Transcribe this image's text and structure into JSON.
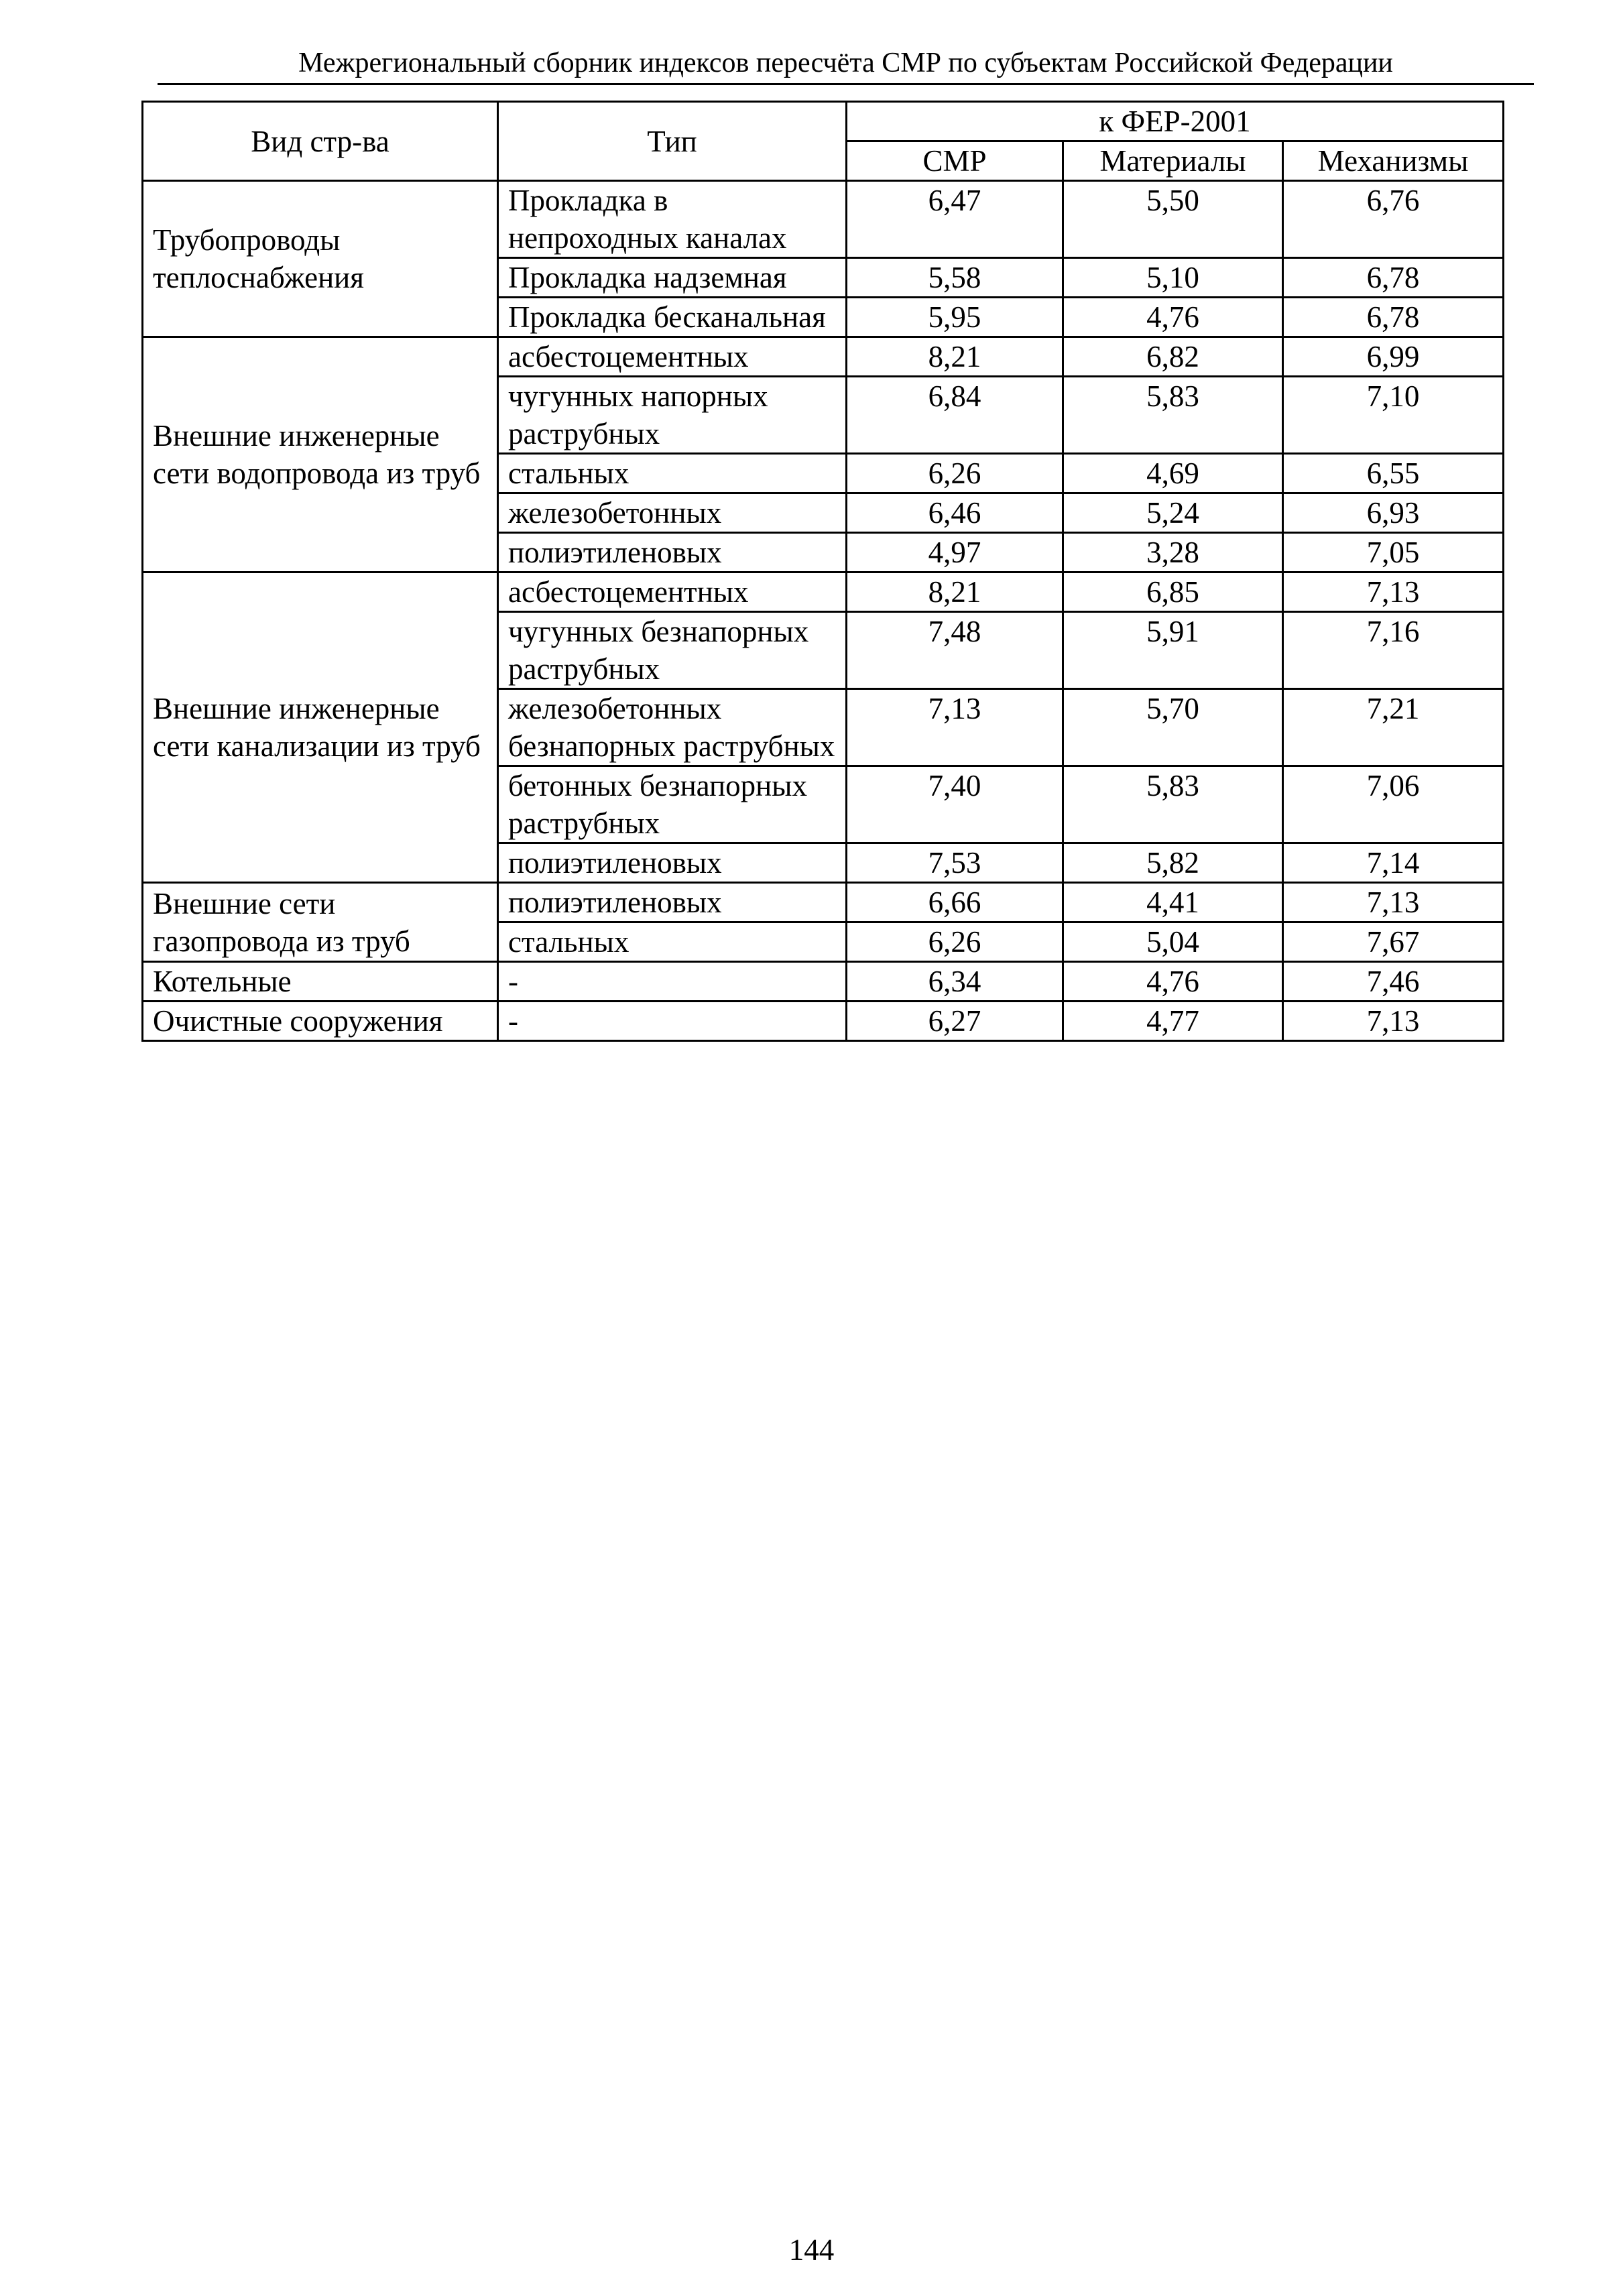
{
  "header": {
    "running_title": "Межрегиональный сборник индексов пересчёта СМР  по субъектам Российской Федерации"
  },
  "table": {
    "headers": {
      "kind": "Вид стр-ва",
      "type": "Тип",
      "group": "к ФЕР-2001",
      "smr": "СМР",
      "materials": "Материалы",
      "machines": "Механизмы"
    },
    "groups": [
      {
        "kind": "Трубопроводы теплоснабжения",
        "rows": [
          {
            "type": "Прокладка в непроходных каналах",
            "smr": "6,47",
            "materials": "5,50",
            "machines": "6,76"
          },
          {
            "type": "Прокладка надземная",
            "smr": "5,58",
            "materials": "5,10",
            "machines": "6,78"
          },
          {
            "type": "Прокладка бесканальная",
            "smr": "5,95",
            "materials": "4,76",
            "machines": "6,78"
          }
        ]
      },
      {
        "kind": "Внешние инженерные сети водопровода из труб",
        "rows": [
          {
            "type": "асбестоцементных",
            "smr": "8,21",
            "materials": "6,82",
            "machines": "6,99"
          },
          {
            "type": "чугунных напорных раструбных",
            "smr": "6,84",
            "materials": "5,83",
            "machines": "7,10"
          },
          {
            "type": "стальных",
            "smr": "6,26",
            "materials": "4,69",
            "machines": "6,55"
          },
          {
            "type": "железобетонных",
            "smr": "6,46",
            "materials": "5,24",
            "machines": "6,93"
          },
          {
            "type": "полиэтиленовых",
            "smr": "4,97",
            "materials": "3,28",
            "machines": "7,05"
          }
        ]
      },
      {
        "kind": "Внешние инженерные сети канализации из труб",
        "rows": [
          {
            "type": "асбестоцементных",
            "smr": "8,21",
            "materials": "6,85",
            "machines": "7,13"
          },
          {
            "type": "чугунных безнапорных раструбных",
            "smr": "7,48",
            "materials": "5,91",
            "machines": "7,16"
          },
          {
            "type": "железобетонных безнапорных раструбных",
            "smr": "7,13",
            "materials": "5,70",
            "machines": "7,21"
          },
          {
            "type": "бетонных безнапорных раструбных",
            "smr": "7,40",
            "materials": "5,83",
            "machines": "7,06"
          },
          {
            "type": "полиэтиленовых",
            "smr": "7,53",
            "materials": "5,82",
            "machines": "7,14"
          }
        ]
      },
      {
        "kind": "Внешние сети газопровода из труб",
        "rows": [
          {
            "type": "полиэтиленовых",
            "smr": "6,66",
            "materials": "4,41",
            "machines": "7,13"
          },
          {
            "type": "стальных",
            "smr": "6,26",
            "materials": "5,04",
            "machines": "7,67"
          }
        ]
      },
      {
        "kind": "Котельные",
        "rows": [
          {
            "type": "-",
            "smr": "6,34",
            "materials": "4,76",
            "machines": "7,46"
          }
        ]
      },
      {
        "kind": "Очистные сооружения",
        "rows": [
          {
            "type": "-",
            "smr": "6,27",
            "materials": "4,77",
            "machines": "7,13"
          }
        ]
      }
    ]
  },
  "footer": {
    "page_number": "144"
  }
}
